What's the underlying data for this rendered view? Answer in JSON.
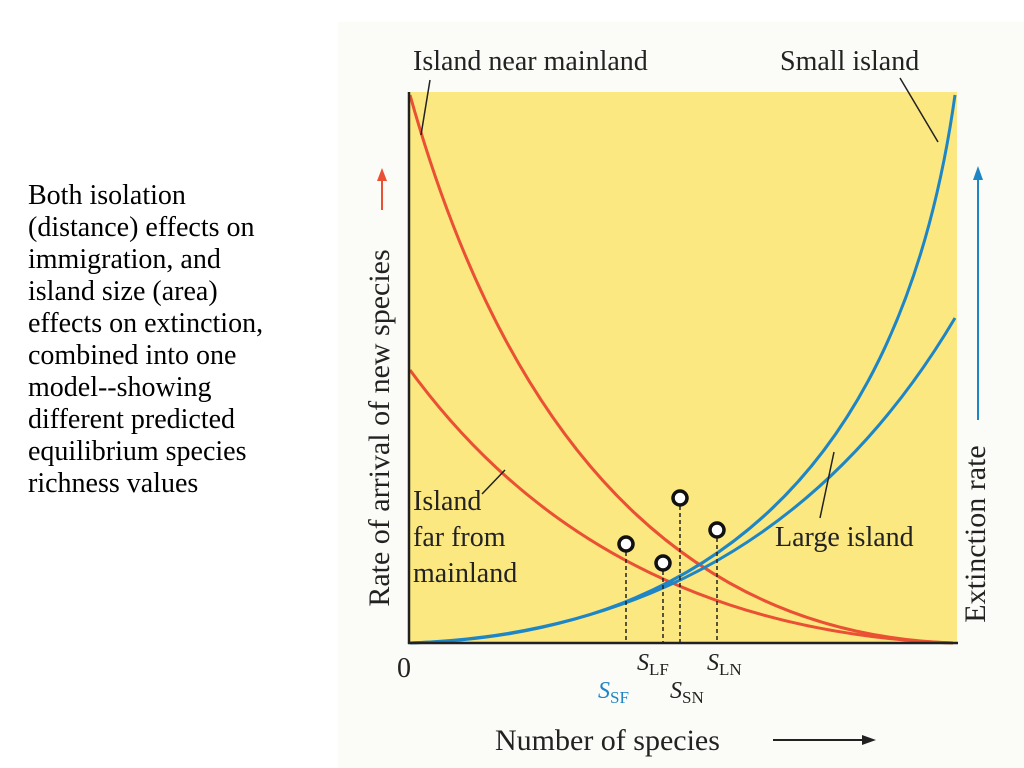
{
  "caption": {
    "lines": [
      "Both isolation",
      "(distance) effects on",
      "immigration, and",
      "island size (area)",
      "effects on extinction,",
      "combined into one",
      "model--showing",
      "different predicted",
      "equilibrium species",
      "richness values"
    ]
  },
  "diagram": {
    "labels": {
      "island_near_mainland": "Island near mainland",
      "small_island": "Small island",
      "island_far_line1": "Island",
      "island_far_line2": "far from",
      "island_far_line3": "mainland",
      "large_island": "Large island"
    },
    "axes": {
      "left_label": "Rate of arrival of new species",
      "right_label": "Extinction rate",
      "x_label": "Number of species",
      "origin": "0"
    },
    "equilibria": {
      "s_sf": {
        "main": "S",
        "sub": "SF"
      },
      "s_lf": {
        "main": "S",
        "sub": "LF"
      },
      "s_sn": {
        "main": "S",
        "sub": "SN"
      },
      "s_ln": {
        "main": "S",
        "sub": "LN"
      }
    },
    "colors": {
      "background": "#fce880",
      "immigration": "#ea5033",
      "extinction": "#1f86c6",
      "axis": "#222222"
    }
  }
}
